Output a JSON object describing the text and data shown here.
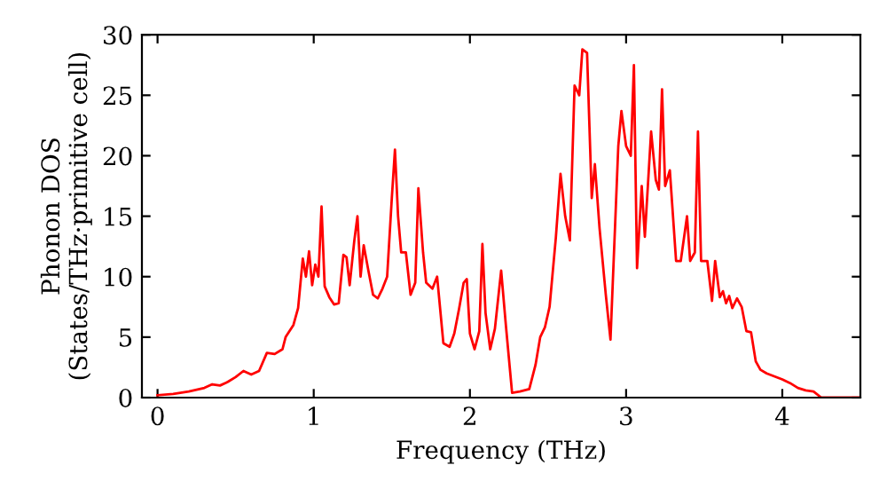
{
  "chart_data": {
    "type": "line",
    "xlabel": "Frequency (THz)",
    "ylabel": "Phonon DOS\n(States/THz·primitive cell)",
    "xlim": [
      -0.1,
      4.5
    ],
    "ylim": [
      0,
      30
    ],
    "xticks": [
      0,
      1,
      2,
      3,
      4
    ],
    "yticks": [
      0,
      5,
      10,
      15,
      20,
      25,
      30
    ],
    "grid": false,
    "legend": false,
    "marker": "none",
    "line_style": "solid",
    "series": [
      {
        "color": "#ff0000",
        "x": [
          0,
          0.1,
          0.2,
          0.3,
          0.35,
          0.4,
          0.45,
          0.5,
          0.55,
          0.6,
          0.65,
          0.7,
          0.75,
          0.8,
          0.82,
          0.87,
          0.9,
          0.93,
          0.95,
          0.97,
          0.99,
          1.01,
          1.03,
          1.05,
          1.07,
          1.1,
          1.13,
          1.16,
          1.19,
          1.21,
          1.23,
          1.26,
          1.28,
          1.3,
          1.32,
          1.35,
          1.38,
          1.41,
          1.44,
          1.47,
          1.5,
          1.52,
          1.54,
          1.56,
          1.59,
          1.62,
          1.65,
          1.67,
          1.7,
          1.72,
          1.76,
          1.79,
          1.83,
          1.87,
          1.9,
          1.93,
          1.96,
          1.98,
          2.0,
          2.03,
          2.06,
          2.08,
          2.1,
          2.13,
          2.16,
          2.2,
          2.23,
          2.27,
          2.32,
          2.38,
          2.42,
          2.45,
          2.48,
          2.51,
          2.55,
          2.58,
          2.61,
          2.64,
          2.67,
          2.7,
          2.72,
          2.75,
          2.78,
          2.8,
          2.83,
          2.87,
          2.9,
          2.95,
          2.97,
          3.0,
          3.03,
          3.05,
          3.07,
          3.1,
          3.12,
          3.16,
          3.19,
          3.21,
          3.23,
          3.25,
          3.28,
          3.32,
          3.35,
          3.39,
          3.41,
          3.44,
          3.46,
          3.48,
          3.52,
          3.55,
          3.57,
          3.6,
          3.62,
          3.64,
          3.66,
          3.68,
          3.71,
          3.74,
          3.77,
          3.8,
          3.83,
          3.86,
          3.9,
          4.0,
          4.05,
          4.1,
          4.15,
          4.2,
          4.25,
          4.5
        ],
        "values": [
          0.2,
          0.3,
          0.5,
          0.8,
          1.1,
          1.0,
          1.3,
          1.7,
          2.2,
          1.9,
          2.2,
          3.7,
          3.6,
          4.0,
          5.0,
          6.0,
          7.4,
          11.5,
          10,
          12.1,
          9.3,
          11.0,
          10.0,
          15.8,
          9.2,
          8.3,
          7.7,
          7.8,
          11.8,
          11.6,
          9.3,
          13.0,
          15.0,
          10.0,
          12.6,
          10.5,
          8.5,
          8.2,
          9.0,
          10.0,
          16.5,
          20.5,
          15.0,
          12.0,
          12.0,
          8.5,
          9.5,
          17.3,
          12.0,
          9.5,
          9.0,
          10.0,
          4.5,
          4.2,
          5.3,
          7.3,
          9.5,
          9.8,
          5.3,
          4.0,
          5.5,
          12.7,
          7.0,
          4.0,
          5.7,
          10.5,
          6.0,
          0.4,
          0.5,
          0.7,
          2.7,
          5.0,
          5.8,
          7.5,
          13.2,
          18.5,
          15.0,
          13.0,
          25.8,
          25.0,
          28.8,
          28.5,
          16.5,
          19.3,
          14.0,
          8.5,
          4.8,
          20.8,
          23.7,
          20.8,
          20.0,
          27.5,
          10.7,
          17.5,
          13.3,
          22.0,
          18.0,
          17.2,
          25.5,
          17.5,
          18.8,
          11.3,
          11.3,
          15.0,
          11.3,
          12.0,
          22.0,
          11.3,
          11.3,
          8.0,
          11.3,
          8.3,
          8.8,
          7.8,
          8.4,
          7.4,
          8.2,
          7.5,
          5.5,
          5.4,
          3.0,
          2.3,
          2.0,
          1.5,
          1.2,
          0.8,
          0.6,
          0.5,
          0,
          0
        ]
      }
    ]
  }
}
